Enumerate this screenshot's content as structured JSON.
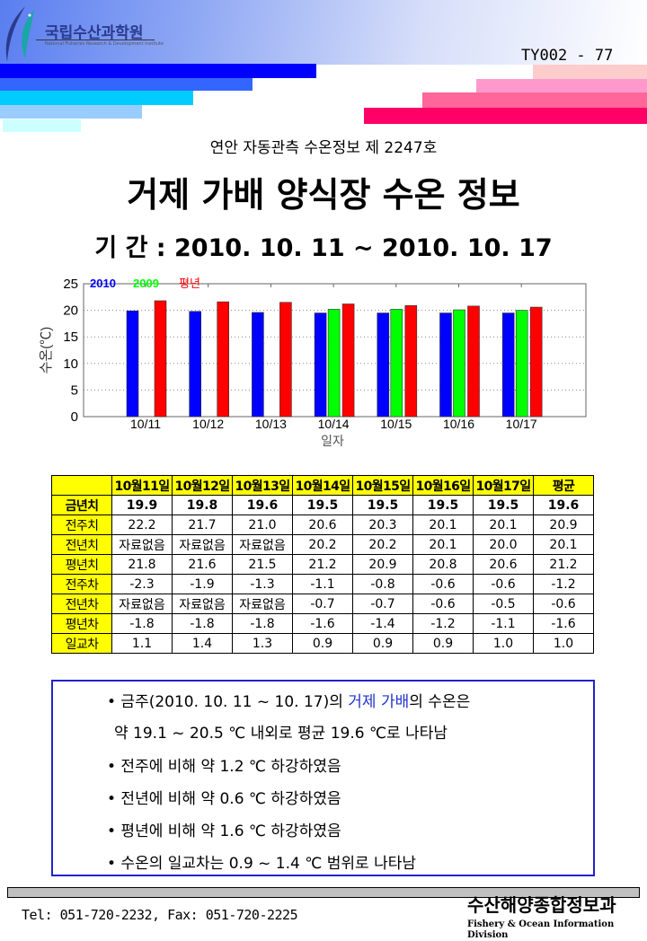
{
  "header": {
    "logo_text": "국립수산과학원",
    "logo_subtext": "National Fisheries Research & Development Institute",
    "doc_number": "TY002 - 77"
  },
  "report": {
    "subtitle": "연안 자동관측 수온정보 제 2247호",
    "title": "거제 가배 양식장 수온 정보",
    "period": "기 간 : 2010. 10. 11 ~ 2010. 10. 17"
  },
  "chart_data": {
    "type": "bar",
    "categories": [
      "10/11",
      "10/12",
      "10/13",
      "10/14",
      "10/15",
      "10/16",
      "10/17"
    ],
    "series": [
      {
        "name": "2010",
        "color": "#0000ff",
        "values": [
          19.9,
          19.8,
          19.6,
          19.5,
          19.5,
          19.5,
          19.5
        ]
      },
      {
        "name": "2009",
        "color": "#00ff00",
        "values": [
          null,
          null,
          null,
          20.2,
          20.2,
          20.1,
          20.0
        ]
      },
      {
        "name": "평년",
        "color": "#ff0000",
        "values": [
          21.8,
          21.6,
          21.5,
          21.2,
          20.9,
          20.8,
          20.6
        ]
      }
    ],
    "xlabel": "일자",
    "ylabel": "수온(℃)",
    "ylim": [
      0,
      25
    ],
    "yticks": [
      0,
      5,
      10,
      15,
      20,
      25
    ],
    "grid": true,
    "legend_placement": "top-left"
  },
  "table": {
    "headers": [
      "",
      "10월11일",
      "10월12일",
      "10월13일",
      "10월14일",
      "10월15일",
      "10월16일",
      "10월17일",
      "평균"
    ],
    "rows": [
      [
        "금년치",
        "19.9",
        "19.8",
        "19.6",
        "19.5",
        "19.5",
        "19.5",
        "19.5",
        "19.6"
      ],
      [
        "전주치",
        "22.2",
        "21.7",
        "21.0",
        "20.6",
        "20.3",
        "20.1",
        "20.1",
        "20.9"
      ],
      [
        "전년치",
        "자료없음",
        "자료없음",
        "자료없음",
        "20.2",
        "20.2",
        "20.1",
        "20.0",
        "20.1"
      ],
      [
        "평년치",
        "21.8",
        "21.6",
        "21.5",
        "21.2",
        "20.9",
        "20.8",
        "20.6",
        "21.2"
      ],
      [
        "전주차",
        "-2.3",
        "-1.9",
        "-1.3",
        "-1.1",
        "-0.8",
        "-0.6",
        "-0.6",
        "-1.2"
      ],
      [
        "전년차",
        "자료없음",
        "자료없음",
        "자료없음",
        "-0.7",
        "-0.7",
        "-0.6",
        "-0.5",
        "-0.6"
      ],
      [
        "평년차",
        "-1.8",
        "-1.8",
        "-1.8",
        "-1.6",
        "-1.4",
        "-1.2",
        "-1.1",
        "-1.6"
      ],
      [
        "일교차",
        "1.1",
        "1.4",
        "1.3",
        "0.9",
        "0.9",
        "0.9",
        "1.0",
        "1.0"
      ]
    ]
  },
  "summary": {
    "line1_pre": "• 금주(2010. 10. 11 ~ 10. 17)의 ",
    "line1_highlight": "거제 가배",
    "line1_post": "의 수온은",
    "line2": "약 19.1 ~ 20.5 ℃ 내외로 평균 19.6 ℃로 나타남",
    "line3": "• 전주에 비해 약 1.2 ℃ 하강하였음",
    "line4": "• 전년에 비해 약 0.6 ℃ 하강하였음",
    "line5": "• 평년에 비해 약 1.6 ℃ 하강하였음",
    "line6": "• 수온의 일교차는 0.9 ~ 1.4 ℃ 범위로 나타남"
  },
  "footer": {
    "contact": "Tel: 051-720-2232,  Fax: 051-720-2225",
    "org_name": "수산해양종합정보과",
    "org_name_en": "Fishery & Ocean Information Division"
  }
}
